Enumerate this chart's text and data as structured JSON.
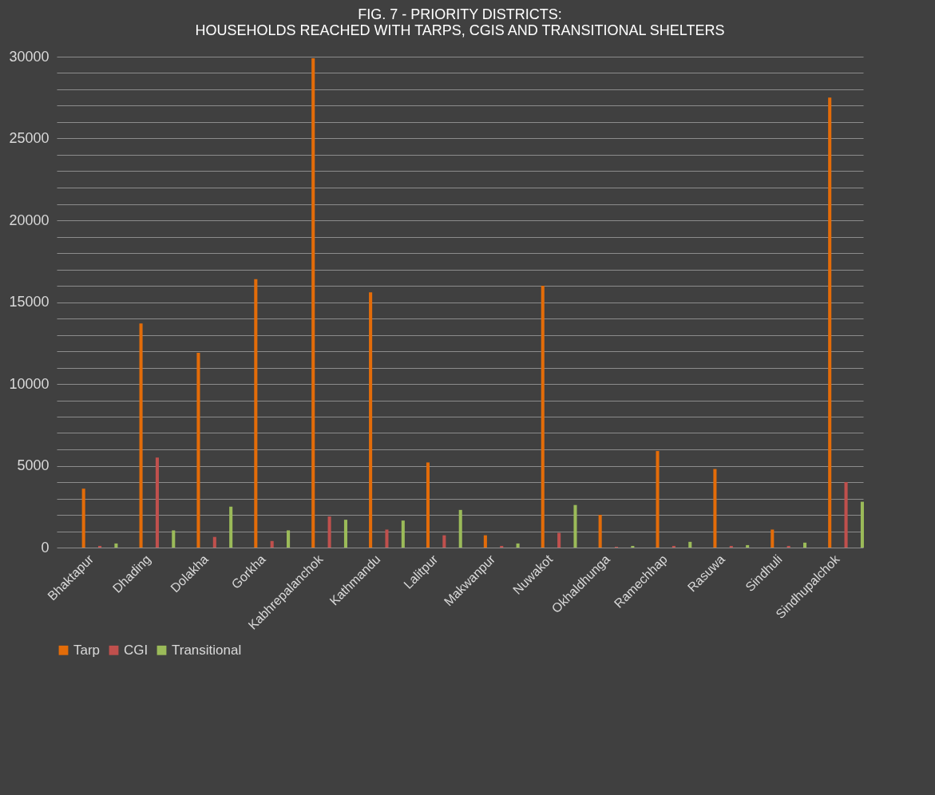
{
  "chart_data": {
    "type": "bar",
    "title": "FIG. 7 - PRIORITY DISTRICTS:\nHOUSEHOLDS REACHED WITH TARPS, CGIS AND TRANSITIONAL SHELTERS",
    "categories": [
      "Bhaktapur",
      "Dhading",
      "Dolakha",
      "Gorkha",
      "Kabhrepalanchok",
      "Kathmandu",
      "Lalitpur",
      "Makwanpur",
      "Nuwakot",
      "Okhaldhunga",
      "Ramechhap",
      "Rasuwa",
      "Sindhuli",
      "Sindhupalchok"
    ],
    "series": [
      {
        "name": "Tarp",
        "color": "#e36c09",
        "values": [
          3600,
          13700,
          11900,
          16400,
          29900,
          15600,
          5200,
          750,
          16000,
          2000,
          5900,
          4800,
          1100,
          27500
        ]
      },
      {
        "name": "CGI",
        "color": "#c0504d",
        "values": [
          100,
          5500,
          650,
          400,
          1900,
          1100,
          750,
          100,
          900,
          50,
          100,
          100,
          100,
          4000
        ]
      },
      {
        "name": "Transitional",
        "color": "#9bbb59",
        "values": [
          250,
          1050,
          2500,
          1050,
          1700,
          1650,
          2300,
          250,
          2600,
          100,
          350,
          150,
          300,
          2800
        ]
      }
    ],
    "ylim": [
      0,
      30000
    ],
    "yticks": [
      0,
      {
        "value": 1000,
        "label": null
      },
      {
        "value": 2000,
        "label": null
      },
      {
        "value": 3000,
        "label": null
      },
      {
        "value": 4000,
        "label": null
      },
      5000,
      {
        "value": 6000,
        "label": null
      },
      {
        "value": 7000,
        "label": null
      },
      {
        "value": 8000,
        "label": null
      },
      {
        "value": 9000,
        "label": null
      },
      10000,
      {
        "value": 11000,
        "label": null
      },
      {
        "value": 12000,
        "label": null
      },
      {
        "value": 13000,
        "label": null
      },
      {
        "value": 14000,
        "label": null
      },
      15000,
      {
        "value": 16000,
        "label": null
      },
      {
        "value": 17000,
        "label": null
      },
      {
        "value": 18000,
        "label": null
      },
      {
        "value": 19000,
        "label": null
      },
      20000,
      {
        "value": 21000,
        "label": null
      },
      {
        "value": 22000,
        "label": null
      },
      {
        "value": 23000,
        "label": null
      },
      {
        "value": 24000,
        "label": null
      },
      25000,
      {
        "value": 26000,
        "label": null
      },
      {
        "value": 27000,
        "label": null
      },
      {
        "value": 28000,
        "label": null
      },
      {
        "value": 29000,
        "label": null
      },
      30000
    ],
    "grid": true,
    "legend": "bottom"
  }
}
